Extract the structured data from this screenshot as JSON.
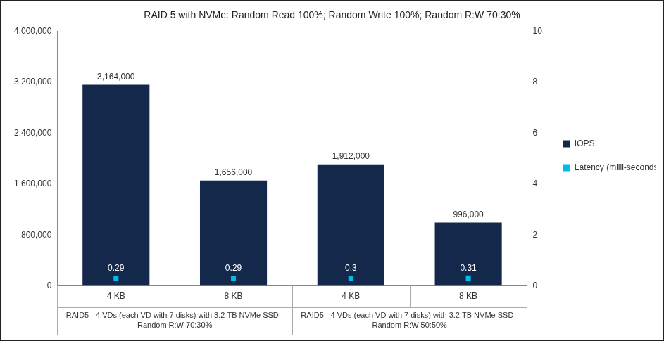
{
  "chart_data": {
    "type": "bar",
    "title": "RAID 5 with NVMe: Random Read 100%; Random Write 100%; Random R:W 70:30%",
    "categories": [
      "4 KB",
      "8 KB",
      "4 KB",
      "8 KB"
    ],
    "category_groups": [
      {
        "label": "RAID5 - 4 VDs (each VD with 7 disks) with 3.2 TB NVMe SSD - Random R:W 70:30%",
        "count": 2
      },
      {
        "label": "RAID5 - 4 VDs (each VD with 7 disks) with 3.2 TB NVMe SSD - Random R:W 50:50%",
        "count": 2
      }
    ],
    "series": [
      {
        "name": "IOPS",
        "type": "bar",
        "color": "#13284b",
        "values": [
          3164000,
          1656000,
          1912000,
          996000
        ],
        "value_labels": [
          "3,164,000",
          "1,656,000",
          "1,912,000",
          "996,000"
        ]
      },
      {
        "name": "Latency (milli-seconds)",
        "type": "line",
        "axis": "y2",
        "color": "#00bceb",
        "marker": "square",
        "line_style": "none",
        "values": [
          0.29,
          0.29,
          0.3,
          0.31
        ]
      }
    ],
    "ylim": [
      0,
      4000000
    ],
    "yticks": [
      0,
      {
        "value": 800000,
        "label": "800,000"
      },
      {
        "value": 1600000,
        "label": "1,600,000"
      },
      {
        "value": 2400000,
        "label": "2,400,000"
      },
      {
        "value": 3200000,
        "label": "3,200,000"
      },
      {
        "value": 4000000,
        "label": "4,000,000"
      }
    ],
    "y2lim": [
      0,
      10
    ],
    "y2ticks": [
      0,
      2,
      4,
      6,
      8,
      10
    ],
    "grid": false,
    "legend": "right",
    "data_labels": true
  }
}
